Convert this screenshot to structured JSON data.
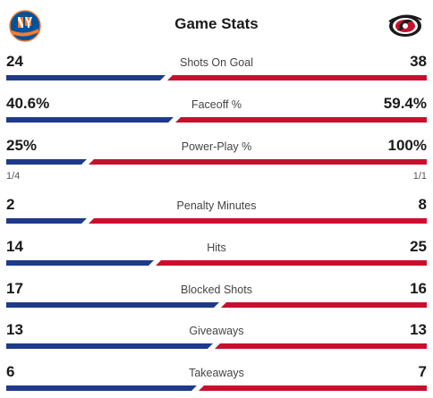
{
  "header": {
    "title": "Game Stats",
    "home_logo_icon": "new-york-islanders-logo-icon",
    "away_logo_icon": "carolina-hurricanes-logo-icon"
  },
  "colors": {
    "left_bar": "#1f3a8a",
    "right_bar": "#c8102e"
  },
  "stats": [
    {
      "label": "Shots On Goal",
      "left": "24",
      "right": "38",
      "left_share": 0.387
    },
    {
      "label": "Faceoff %",
      "left": "40.6%",
      "right": "59.4%",
      "left_share": 0.406
    },
    {
      "label": "Power-Play %",
      "left": "25%",
      "right": "100%",
      "left_share": 0.2,
      "left_sub": "1/4",
      "right_sub": "1/1"
    },
    {
      "label": "Penalty Minutes",
      "left": "2",
      "right": "8",
      "left_share": 0.2
    },
    {
      "label": "Hits",
      "left": "14",
      "right": "25",
      "left_share": 0.359
    },
    {
      "label": "Blocked Shots",
      "left": "17",
      "right": "16",
      "left_share": 0.515
    },
    {
      "label": "Giveaways",
      "left": "13",
      "right": "13",
      "left_share": 0.5
    },
    {
      "label": "Takeaways",
      "left": "6",
      "right": "7",
      "left_share": 0.462
    }
  ]
}
